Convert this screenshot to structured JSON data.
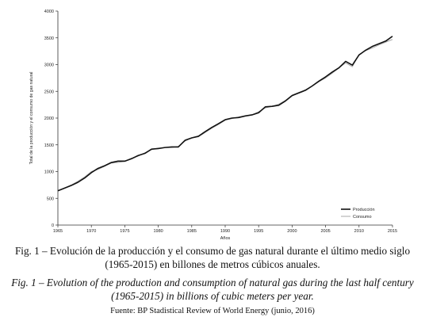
{
  "chart_data": {
    "type": "line",
    "title": "",
    "xlabel": "Años",
    "ylabel": "Total de la producción y el consumo de gas natural",
    "xlim": [
      1965,
      2015
    ],
    "ylim": [
      0,
      4000
    ],
    "x_ticks": [
      1965,
      1970,
      1975,
      1980,
      1985,
      1990,
      1995,
      2000,
      2005,
      2010,
      2015
    ],
    "y_ticks": [
      0,
      500,
      1000,
      1500,
      2000,
      2500,
      3000,
      3500,
      4000
    ],
    "grid": false,
    "legend_position": "bottom-right",
    "x": [
      1965,
      1966,
      1967,
      1968,
      1969,
      1970,
      1971,
      1972,
      1973,
      1974,
      1975,
      1976,
      1977,
      1978,
      1979,
      1980,
      1981,
      1982,
      1983,
      1984,
      1985,
      1986,
      1987,
      1988,
      1989,
      1990,
      1991,
      1992,
      1993,
      1994,
      1995,
      1996,
      1997,
      1998,
      1999,
      2000,
      2001,
      2002,
      2003,
      2004,
      2005,
      2006,
      2007,
      2008,
      2009,
      2010,
      2011,
      2012,
      2013,
      2014,
      2015
    ],
    "series": [
      {
        "name": "Producción",
        "color": "#111111",
        "values": [
          640,
          690,
          740,
          800,
          880,
          980,
          1060,
          1110,
          1170,
          1195,
          1195,
          1240,
          1300,
          1340,
          1420,
          1430,
          1450,
          1460,
          1460,
          1585,
          1630,
          1660,
          1745,
          1825,
          1895,
          1970,
          2000,
          2010,
          2040,
          2060,
          2100,
          2210,
          2220,
          2240,
          2320,
          2420,
          2470,
          2520,
          2600,
          2690,
          2770,
          2860,
          2940,
          3060,
          2990,
          3180,
          3270,
          3340,
          3390,
          3440,
          3530
        ]
      },
      {
        "name": "Consumo",
        "color": "#aaaaaa",
        "values": [
          640,
          690,
          750,
          820,
          900,
          1000,
          1040,
          1100,
          1160,
          1170,
          1190,
          1250,
          1290,
          1350,
          1410,
          1440,
          1450,
          1450,
          1470,
          1570,
          1630,
          1650,
          1730,
          1810,
          1880,
          1960,
          1990,
          2020,
          2040,
          2060,
          2120,
          2190,
          2220,
          2260,
          2330,
          2430,
          2480,
          2530,
          2600,
          2680,
          2750,
          2840,
          2940,
          3030,
          2960,
          3190,
          3260,
          3310,
          3370,
          3420,
          3470
        ]
      }
    ]
  },
  "captions": {
    "spanish": "Fig. 1 – Evolución de la producción y el consumo de gas natural durante el último medio siglo (1965-2015) en billones de metros cúbicos anuales.",
    "english": "Fig. 1 – Evolution of the production and consumption of natural gas during the last half century (1965-2015) in billions of cubic meters per year.",
    "source": "Fuente: BP Stadistical Review of World Energy (junio, 2016)"
  }
}
